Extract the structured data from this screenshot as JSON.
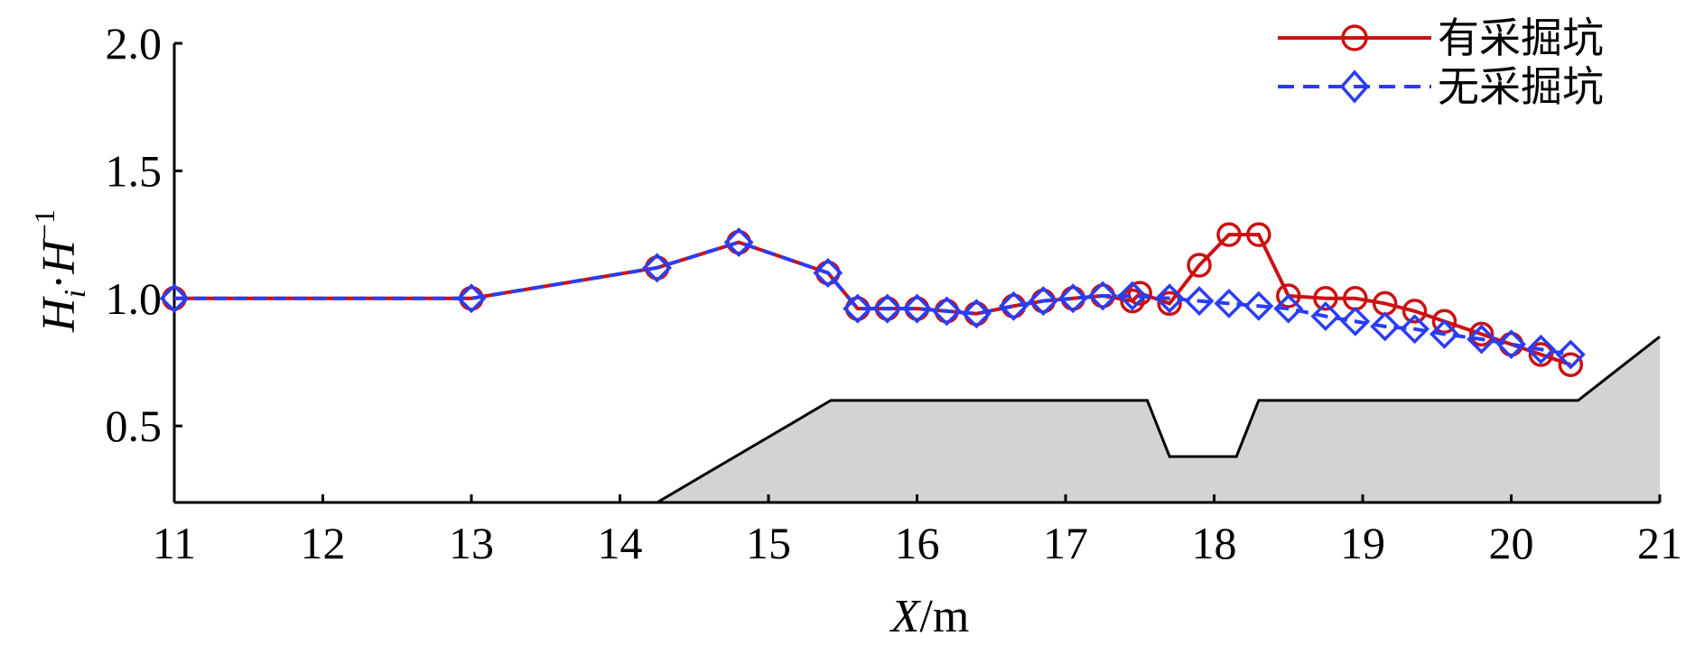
{
  "chart_data": {
    "type": "line",
    "xlabel": {
      "italic": "X",
      "unit": "/m"
    },
    "ylabel": {
      "H": "H",
      "i_sub": "i",
      "dot": "·",
      "H2": "H",
      "sup": "−1"
    },
    "xlim": [
      11,
      21
    ],
    "ylim": [
      0.2,
      2.0
    ],
    "xticks": [
      11,
      12,
      13,
      14,
      15,
      16,
      17,
      18,
      19,
      20,
      21
    ],
    "yticks": [
      0.5,
      1.0,
      1.5,
      2.0
    ],
    "ytick_labels": [
      "0.5",
      "1.0",
      "1.5",
      "2.0"
    ],
    "legend_position": "top-right",
    "series": [
      {
        "name": "有采掘坑",
        "color": "#cc1111",
        "marker": "circle",
        "line_style": "solid",
        "x": [
          11.0,
          13.0,
          14.25,
          14.8,
          15.4,
          15.6,
          15.8,
          16.0,
          16.2,
          16.4,
          16.65,
          16.85,
          17.05,
          17.25,
          17.45,
          17.5,
          17.7,
          17.9,
          18.1,
          18.3,
          18.5,
          18.75,
          18.95,
          19.15,
          19.35,
          19.55,
          19.8,
          20.0,
          20.2,
          20.4
        ],
        "y": [
          1.0,
          1.0,
          1.12,
          1.22,
          1.1,
          0.96,
          0.96,
          0.96,
          0.95,
          0.94,
          0.97,
          0.99,
          1.0,
          1.01,
          0.99,
          1.02,
          0.98,
          1.13,
          1.25,
          1.25,
          1.01,
          1.0,
          1.0,
          0.98,
          0.95,
          0.91,
          0.86,
          0.82,
          0.78,
          0.74
        ]
      },
      {
        "name": "无采掘坑",
        "color": "#2a3df5",
        "marker": "diamond",
        "line_style": "dashed",
        "x": [
          11.0,
          13.0,
          14.25,
          14.8,
          15.4,
          15.6,
          15.8,
          16.0,
          16.2,
          16.4,
          16.65,
          16.85,
          17.05,
          17.25,
          17.45,
          17.7,
          17.9,
          18.1,
          18.3,
          18.5,
          18.75,
          18.95,
          19.15,
          19.35,
          19.55,
          19.8,
          20.0,
          20.2,
          20.4
        ],
        "y": [
          1.0,
          1.0,
          1.12,
          1.22,
          1.1,
          0.96,
          0.96,
          0.96,
          0.95,
          0.94,
          0.97,
          0.99,
          1.0,
          1.01,
          1.01,
          1.0,
          0.99,
          0.98,
          0.97,
          0.96,
          0.93,
          0.91,
          0.89,
          0.88,
          0.86,
          0.84,
          0.82,
          0.8,
          0.78
        ]
      }
    ],
    "terrain": {
      "fill": "#d3d3d3",
      "x": [
        14.25,
        15.42,
        17.55,
        17.7,
        18.15,
        18.3,
        20.45,
        21.0
      ],
      "y": [
        0.2,
        0.6,
        0.6,
        0.38,
        0.38,
        0.6,
        0.6,
        0.85
      ]
    }
  }
}
